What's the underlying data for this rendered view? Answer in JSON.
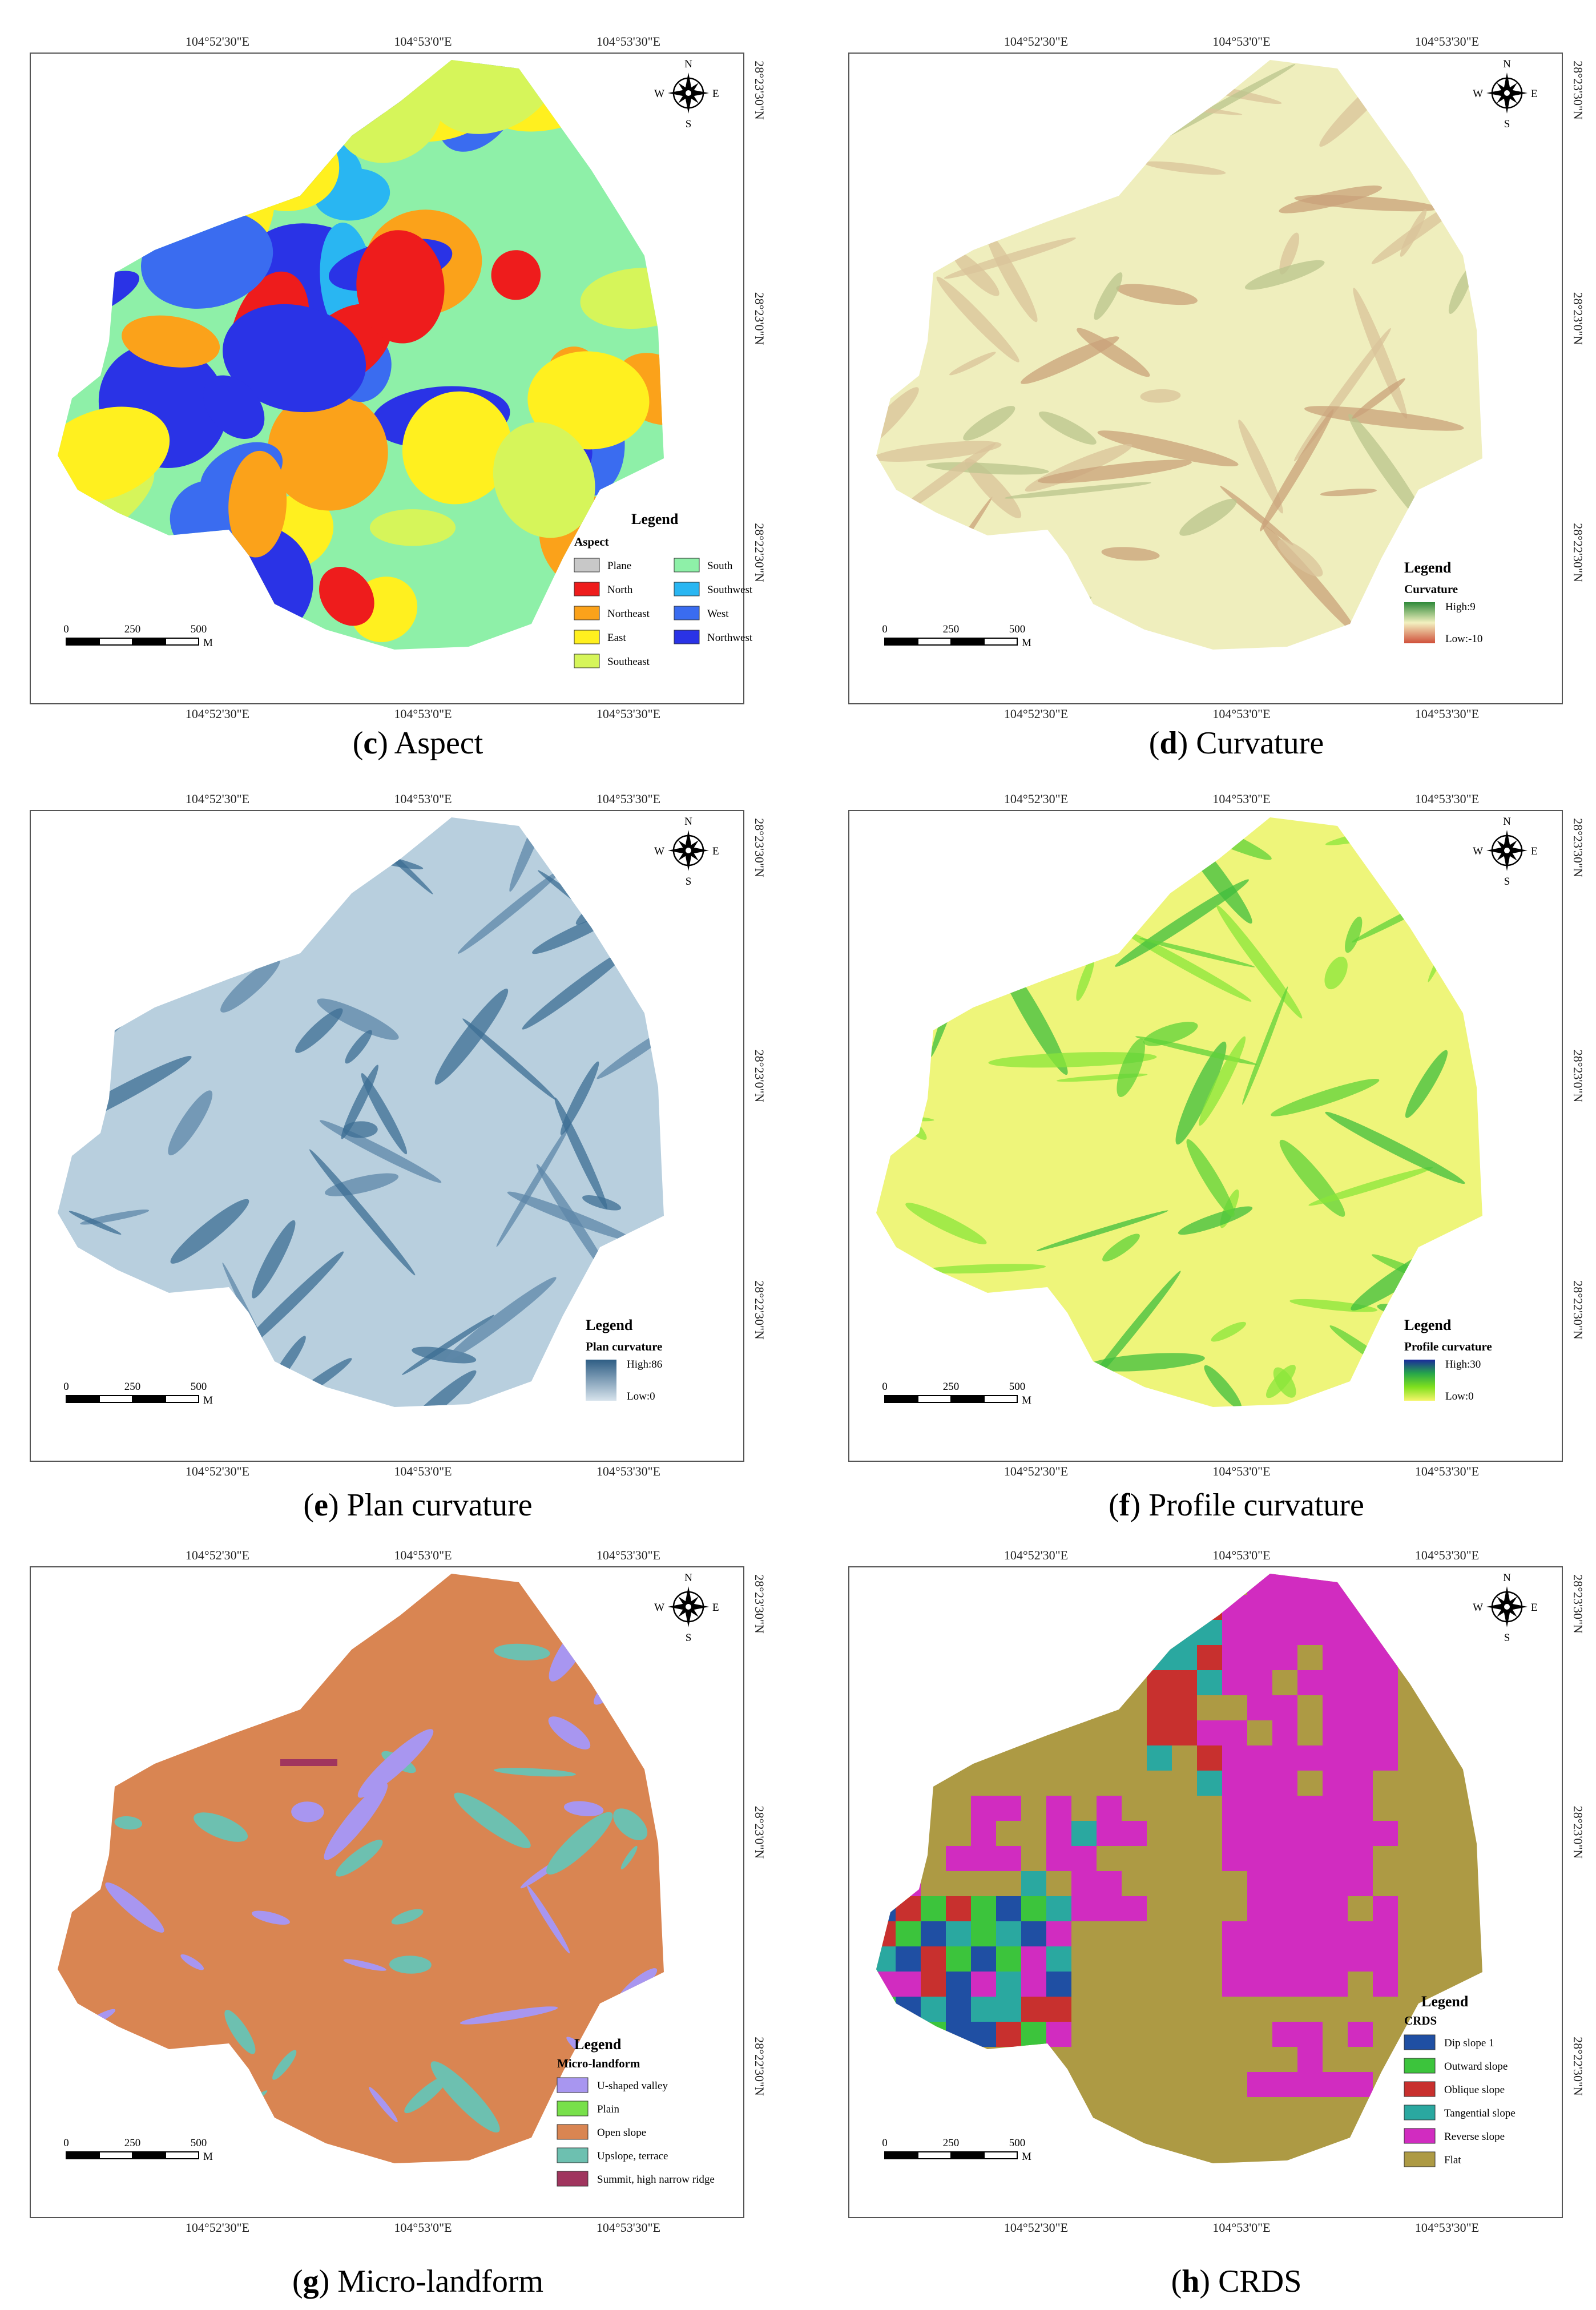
{
  "coords": {
    "lon": [
      "104°52'30\"E",
      "104°53'0\"E",
      "104°53'30\"E"
    ],
    "lat": [
      "28°23'30\"N",
      "28°23'0\"N",
      "28°22'30\"N"
    ]
  },
  "compass": {
    "n": "N",
    "s": "S",
    "e": "E",
    "w": "W"
  },
  "scalebar": {
    "t0": "0",
    "t1": "250",
    "t2": "500",
    "unit": "M"
  },
  "legend_title": "Legend",
  "panels": [
    {
      "letter": "c",
      "caption": "Aspect",
      "kind": "categorical",
      "legend_sub": "Aspect",
      "items": [
        {
          "label": "Plane",
          "color": "#c8c8c8"
        },
        {
          "label": "North",
          "color": "#ee1c1c"
        },
        {
          "label": "Northeast",
          "color": "#fba21a"
        },
        {
          "label": "East",
          "color": "#fff01f"
        },
        {
          "label": "Southeast",
          "color": "#d6f55a"
        },
        {
          "label": "South",
          "color": "#8ef0a8"
        },
        {
          "label": "Southwest",
          "color": "#29b6f2"
        },
        {
          "label": "West",
          "color": "#3a6cf0"
        },
        {
          "label": "Northwest",
          "color": "#2a33e6"
        }
      ],
      "base_color": "#8ef0a8",
      "patch_colors": [
        "#ee1c1c",
        "#fff01f",
        "#2a33e6",
        "#fba21a",
        "#29b6f2",
        "#3a6cf0",
        "#d6f55a"
      ]
    },
    {
      "letter": "d",
      "caption": "Curvature",
      "kind": "gradient",
      "legend_sub": "Curvature",
      "high": "High:9",
      "low": "Low:-10",
      "grad": [
        "#2f8a3a",
        "#f3f1c0",
        "#d0503a"
      ],
      "base_color": "#efeebd",
      "patch_colors": [
        "#c9a17a",
        "#d9c39a",
        "#b9c48c"
      ]
    },
    {
      "letter": "e",
      "caption": "Plan curvature",
      "kind": "gradient",
      "legend_sub": "Plan curvature",
      "high": "High:86",
      "low": "Low:0",
      "grad": [
        "#2e5d84",
        "#d7e3ec"
      ],
      "base_color": "#b8cfde",
      "patch_colors": [
        "#3c6d93",
        "#3c6d93",
        "#5d87a8"
      ]
    },
    {
      "letter": "f",
      "caption": "Profile curvature",
      "kind": "gradient",
      "legend_sub": "Profile curvature",
      "high": "High:30",
      "low": "Low:0",
      "grad": [
        "#1a2a9c",
        "#26a64a",
        "#7fe01e",
        "#f5f56a"
      ],
      "base_color": "#eef57a",
      "patch_colors": [
        "#5fd23a",
        "#3fbe3e",
        "#8ae63a"
      ]
    },
    {
      "letter": "g",
      "caption": "Micro-landform",
      "kind": "categorical",
      "legend_sub": "Micro-landform",
      "items": [
        {
          "label": "U-shaped valley",
          "color": "#a896f0"
        },
        {
          "label": "Plain",
          "color": "#78e04a"
        },
        {
          "label": "Open slope",
          "color": "#d98552"
        },
        {
          "label": "Upslope, terrace",
          "color": "#6dc0b0"
        },
        {
          "label": "Summit, high narrow ridge",
          "color": "#a0355e"
        }
      ],
      "base_color": "#d98552",
      "patch_colors": [
        "#a896f0",
        "#6dc0b0",
        "#6dc0b0"
      ]
    },
    {
      "letter": "h",
      "caption": "CRDS",
      "kind": "categorical",
      "legend_sub": "CRDS",
      "items": [
        {
          "label": "Dip slope 1",
          "color": "#1f4fa3"
        },
        {
          "label": "Outward slope",
          "color": "#3cc43c"
        },
        {
          "label": "Oblique slope",
          "color": "#c8302e"
        },
        {
          "label": "Tangential slope",
          "color": "#2aa8a0"
        },
        {
          "label": "Reverse slope",
          "color": "#d12cc0"
        },
        {
          "label": "Flat",
          "color": "#ad9a44"
        }
      ],
      "base_color": "#ad9a44",
      "patch_colors": [
        "#d12cc0",
        "#c8302e",
        "#2aa8a0"
      ]
    }
  ]
}
